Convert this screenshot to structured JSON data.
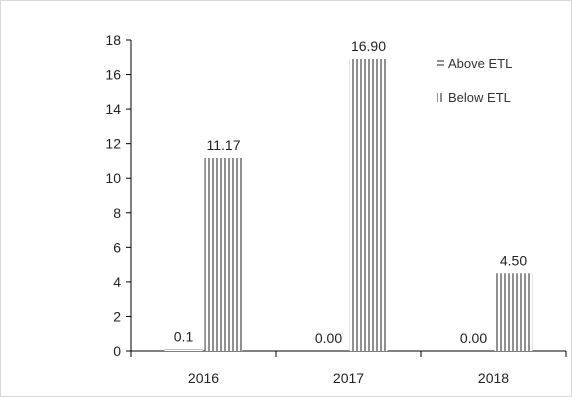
{
  "chart_data": {
    "type": "bar",
    "title": "",
    "xlabel": "",
    "ylabel": "",
    "categories": [
      "2016",
      "2017",
      "2018"
    ],
    "series": [
      {
        "name": "Above ETL",
        "values": [
          0.1,
          0.0,
          0.0
        ],
        "labels": [
          "0.1",
          "0.00",
          "0.00"
        ],
        "pattern": "horizontal-lines"
      },
      {
        "name": "Below ETL",
        "values": [
          11.17,
          16.9,
          4.5
        ],
        "labels": [
          "11.17",
          "16.90",
          "4.50"
        ],
        "pattern": "vertical-lines"
      }
    ],
    "ylim": [
      0,
      18
    ],
    "yticks": [
      0,
      2,
      4,
      6,
      8,
      10,
      12,
      14,
      16,
      18
    ],
    "grid": false,
    "legend_position": "top-right",
    "colors": {
      "bar_stripe": "#555555",
      "axis": "#000000",
      "text": "#222222"
    }
  }
}
